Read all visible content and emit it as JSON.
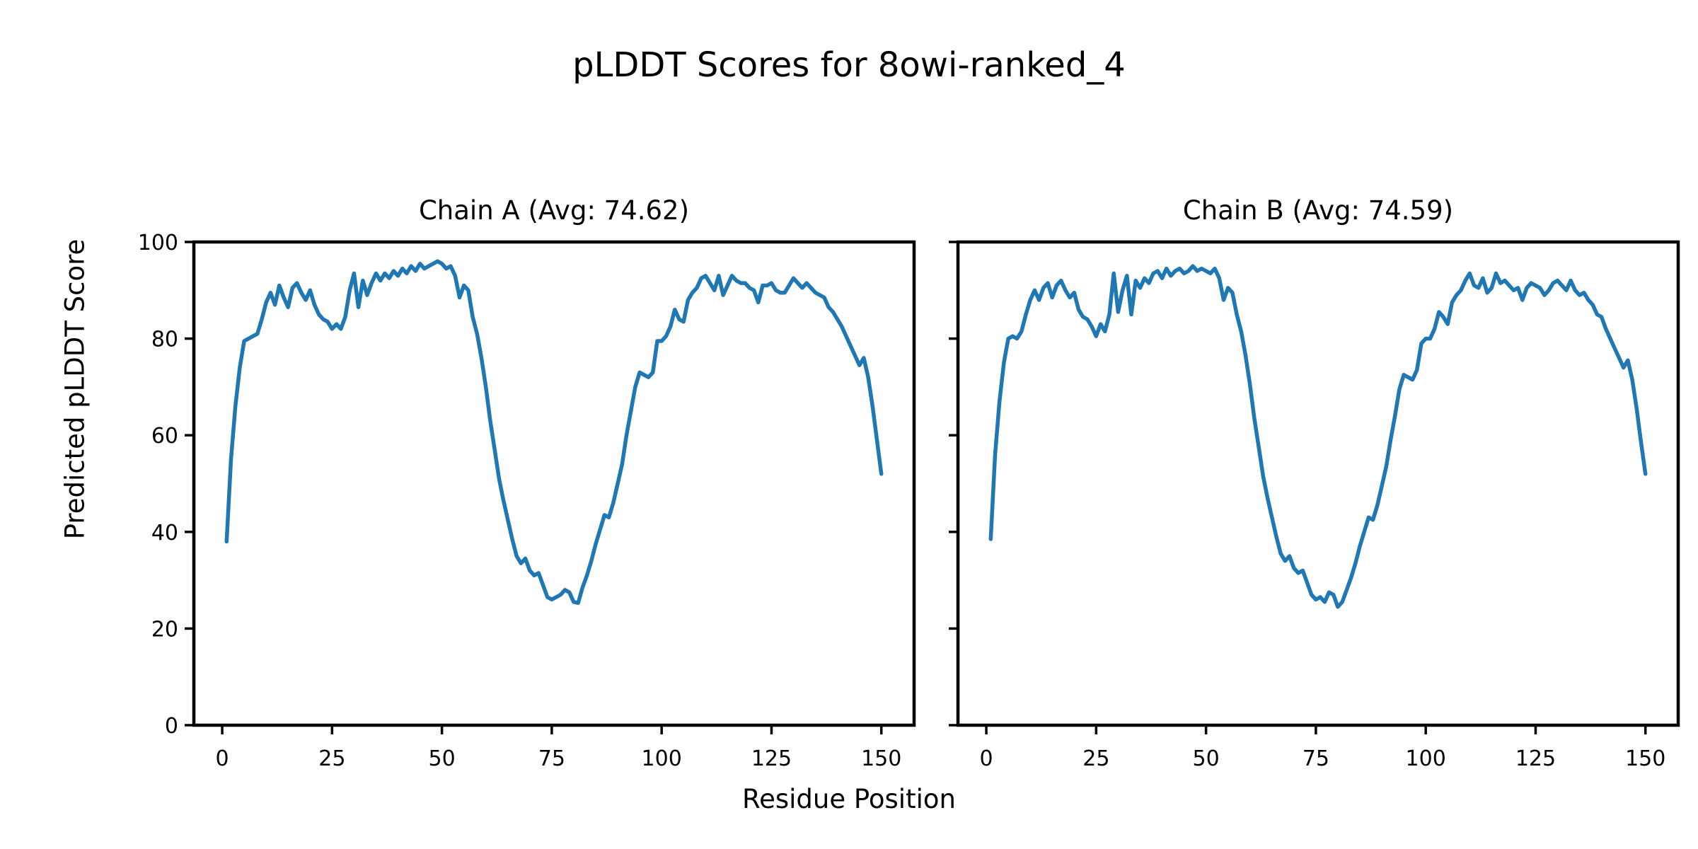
{
  "figure": {
    "suptitle": "pLDDT Scores for 8owi-ranked_4",
    "xlabel": "Residue Position",
    "ylabel": "Predicted pLDDT Score",
    "background": "#ffffff",
    "text_color": "#000000"
  },
  "chart_data": [
    {
      "type": "line",
      "title": "Chain A (Avg: 74.62)",
      "chain": "A",
      "avg_plddt": 74.62,
      "xlabel": "Residue Position",
      "ylabel": "Predicted pLDDT Score",
      "xlim": [
        -6.45,
        157.45
      ],
      "ylim": [
        0,
        100
      ],
      "x_ticks": [
        0,
        25,
        50,
        75,
        100,
        125,
        150
      ],
      "y_ticks": [
        0,
        20,
        40,
        60,
        80,
        100
      ],
      "grid": false,
      "legend": "none",
      "line_color": "#1f77b4",
      "x_start_residue": 1,
      "values": [
        38,
        55,
        66,
        74,
        79.5,
        80,
        80.5,
        81,
        84,
        87.5,
        89.5,
        87,
        91,
        88.5,
        86.5,
        90.5,
        91.5,
        89.5,
        88,
        90,
        87,
        85,
        84,
        83.5,
        82,
        83,
        82,
        84.5,
        90,
        93.5,
        86.5,
        92,
        89,
        91.5,
        93.5,
        92,
        93.5,
        92.5,
        94,
        93,
        94.5,
        93.5,
        95,
        94,
        95.5,
        94.5,
        95,
        95.5,
        96,
        95.5,
        94.5,
        95,
        93,
        88.5,
        91,
        90,
        84.5,
        81,
        76,
        70,
        63,
        57,
        51,
        46.5,
        42.5,
        38.5,
        35,
        33.5,
        34.5,
        32,
        31,
        31.5,
        29,
        26.5,
        26,
        26.5,
        27,
        28,
        27.5,
        25.5,
        25.3,
        28.5,
        31,
        34,
        37.5,
        40.5,
        43.5,
        43,
        46,
        50,
        54,
        60,
        65,
        70,
        73,
        72.5,
        72,
        73,
        79.5,
        79.5,
        80.5,
        82.5,
        86,
        84,
        83.5,
        88,
        89.5,
        90.5,
        92.5,
        93,
        91.5,
        90,
        93,
        89,
        91,
        93,
        92,
        91.5,
        91.5,
        90.5,
        90,
        87.5,
        91,
        91,
        91.5,
        90,
        89.5,
        89.5,
        91,
        92.5,
        91.5,
        90.5,
        91.5,
        90.5,
        89.5,
        89,
        88.5,
        86.5,
        85.5,
        84,
        82.5,
        80.5,
        78.5,
        76.5,
        74.5,
        76,
        72,
        66,
        59,
        52
      ]
    },
    {
      "type": "line",
      "title": "Chain B (Avg: 74.59)",
      "chain": "B",
      "avg_plddt": 74.59,
      "xlabel": "Residue Position",
      "ylabel": "Predicted pLDDT Score",
      "xlim": [
        -6.45,
        157.45
      ],
      "ylim": [
        0,
        100
      ],
      "x_ticks": [
        0,
        25,
        50,
        75,
        100,
        125,
        150
      ],
      "y_ticks": [
        0,
        20,
        40,
        60,
        80,
        100
      ],
      "grid": false,
      "legend": "none",
      "line_color": "#1f77b4",
      "x_start_residue": 1,
      "values": [
        38.5,
        56,
        67,
        75,
        80,
        80.5,
        80,
        81.5,
        85,
        88,
        90,
        88,
        90.5,
        91.5,
        88.5,
        91,
        92,
        90,
        88.5,
        89.5,
        86,
        84.5,
        84,
        82.5,
        80.5,
        83,
        81.5,
        85,
        93.5,
        85.5,
        90,
        93,
        85,
        92,
        90.5,
        92.5,
        91.5,
        93.5,
        94,
        92.5,
        94.5,
        93,
        94,
        94.5,
        93.5,
        94,
        95,
        94,
        94.5,
        94,
        93.5,
        94.5,
        92.5,
        88,
        90.5,
        89.5,
        85,
        81.5,
        76.5,
        70.5,
        63.5,
        57.5,
        51.5,
        47,
        43,
        39,
        35.5,
        34,
        35,
        32.5,
        31.5,
        32,
        29.5,
        27,
        26,
        26.5,
        25.5,
        27.5,
        27,
        24.5,
        25.5,
        28,
        30.5,
        33.5,
        37,
        40,
        43,
        42.5,
        45.5,
        49.5,
        53.5,
        59,
        64,
        69.5,
        72.5,
        72,
        71.5,
        73.5,
        79,
        80,
        80,
        82,
        85.5,
        84.5,
        83,
        87.5,
        89,
        90,
        92,
        93.5,
        91,
        90.5,
        92.5,
        89.5,
        90.5,
        93.5,
        91.5,
        92,
        91,
        90,
        90.5,
        88,
        90.5,
        91.5,
        91,
        90.5,
        89,
        90,
        91.5,
        92,
        91,
        90,
        92,
        90,
        89,
        89.5,
        88,
        87,
        85,
        84.5,
        82,
        80,
        78,
        76,
        74,
        75.5,
        71.5,
        65.5,
        58.5,
        52
      ]
    }
  ]
}
